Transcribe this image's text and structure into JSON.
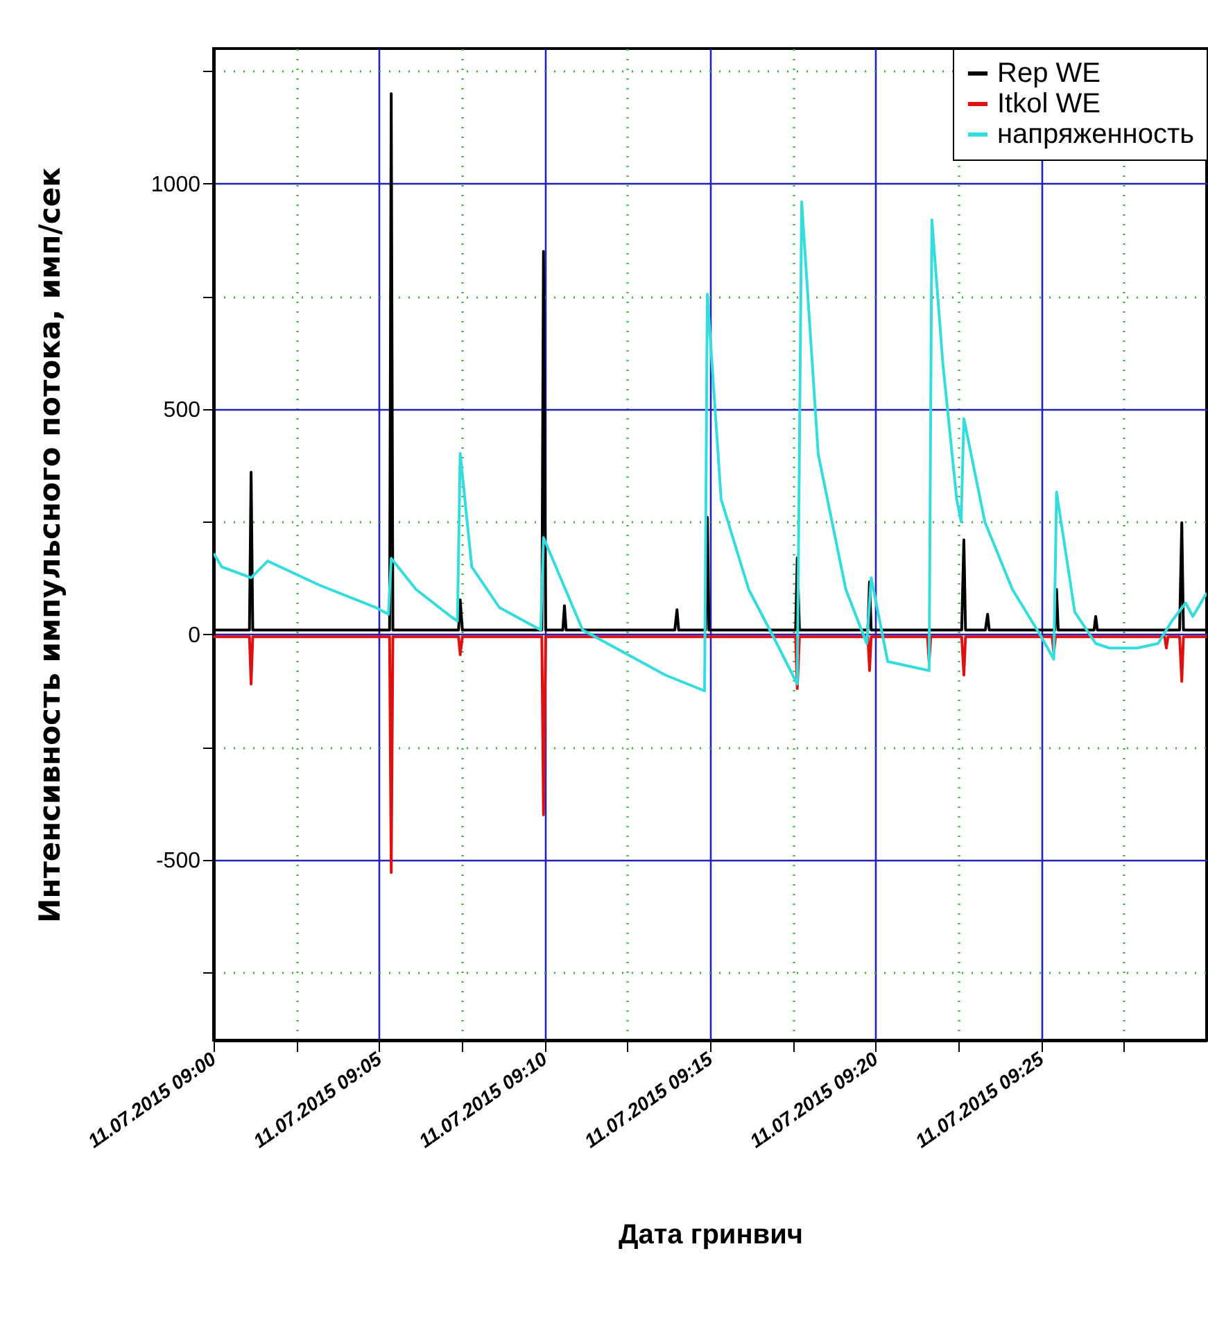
{
  "chart_data": {
    "type": "line",
    "xlabel": "Дата гринвич",
    "ylabel": "Интенсивность  импульсного потока, имп/сек",
    "xlim": [
      "2015-07-11T09:00",
      "2015-07-11T09:30"
    ],
    "xticks": [
      {
        "value": "2015-07-11T09:00",
        "label": "11.07.2015 09:00"
      },
      {
        "value": "2015-07-11T09:02:30",
        "label": null
      },
      {
        "value": "2015-07-11T09:05",
        "label": "11.07.2015 09:05"
      },
      {
        "value": "2015-07-11T09:07:30",
        "label": null
      },
      {
        "value": "2015-07-11T09:10",
        "label": "11.07.2015 09:10"
      },
      {
        "value": "2015-07-11T09:12:30",
        "label": null
      },
      {
        "value": "2015-07-11T09:15",
        "label": "11.07.2015 09:15"
      },
      {
        "value": "2015-07-11T09:17:30",
        "label": null
      },
      {
        "value": "2015-07-11T09:20",
        "label": "11.07.2015 09:20"
      },
      {
        "value": "2015-07-11T09:22:30",
        "label": null
      },
      {
        "value": "2015-07-11T09:25",
        "label": "11.07.2015 09:25"
      },
      {
        "value": "2015-07-11T09:27:30",
        "label": null
      }
    ],
    "ylim": [
      -900,
      1300
    ],
    "yticks": [
      {
        "value": -750,
        "label": null
      },
      -500,
      {
        "value": -250,
        "label": null
      },
      0,
      {
        "value": 250,
        "label": null
      },
      500,
      {
        "value": 750,
        "label": null
      },
      1000,
      {
        "value": 1250,
        "label": null
      }
    ],
    "grid": true,
    "legend": "top right",
    "series": [
      {
        "name": "Rep WE",
        "color": "#000000",
        "x": [
          "2015-07-11T09:00:00",
          "2015-07-11T09:01:05",
          "2015-07-11T09:01:08",
          "2015-07-11T09:01:11",
          "2015-07-11T09:05:19",
          "2015-07-11T09:05:22",
          "2015-07-11T09:05:25",
          "2015-07-11T09:07:24",
          "2015-07-11T09:07:27",
          "2015-07-11T09:07:31",
          "2015-07-11T09:09:55",
          "2015-07-11T09:09:58",
          "2015-07-11T09:10:02",
          "2015-07-11T09:10:33",
          "2015-07-11T09:10:36",
          "2015-07-11T09:10:39",
          "2015-07-11T09:13:56",
          "2015-07-11T09:14:00",
          "2015-07-11T09:14:03",
          "2015-07-11T09:14:52",
          "2015-07-11T09:14:55",
          "2015-07-11T09:14:58",
          "2015-07-11T09:17:35",
          "2015-07-11T09:17:38",
          "2015-07-11T09:17:42",
          "2015-07-11T09:19:46",
          "2015-07-11T09:19:49",
          "2015-07-11T09:19:52",
          "2015-07-11T09:22:36",
          "2015-07-11T09:22:40",
          "2015-07-11T09:22:43",
          "2015-07-11T09:23:19",
          "2015-07-11T09:23:23",
          "2015-07-11T09:23:26",
          "2015-07-11T09:25:25",
          "2015-07-11T09:25:28",
          "2015-07-11T09:25:31",
          "2015-07-11T09:26:36",
          "2015-07-11T09:26:39",
          "2015-07-11T09:26:42",
          "2015-07-11T09:29:11",
          "2015-07-11T09:29:15",
          "2015-07-11T09:29:18",
          "2015-07-11T09:30:00"
        ],
        "values": [
          10,
          10,
          360,
          10,
          10,
          1200,
          10,
          10,
          77,
          10,
          10,
          850,
          10,
          10,
          64,
          10,
          10,
          55,
          10,
          10,
          260,
          10,
          10,
          170,
          10,
          10,
          117,
          10,
          10,
          210,
          10,
          10,
          45,
          10,
          10,
          100,
          10,
          10,
          40,
          10,
          10,
          248,
          10,
          10
        ]
      },
      {
        "name": "Itkol WE",
        "color": "#dd1111",
        "x": [
          "2015-07-11T09:00:00",
          "2015-07-11T09:01:05",
          "2015-07-11T09:01:08",
          "2015-07-11T09:01:11",
          "2015-07-11T09:05:19",
          "2015-07-11T09:05:22",
          "2015-07-11T09:05:25",
          "2015-07-11T09:07:24",
          "2015-07-11T09:07:27",
          "2015-07-11T09:07:31",
          "2015-07-11T09:09:55",
          "2015-07-11T09:09:58",
          "2015-07-11T09:10:02",
          "2015-07-11T09:17:35",
          "2015-07-11T09:17:38",
          "2015-07-11T09:17:42",
          "2015-07-11T09:19:46",
          "2015-07-11T09:19:49",
          "2015-07-11T09:19:52",
          "2015-07-11T09:21:34",
          "2015-07-11T09:21:37",
          "2015-07-11T09:21:40",
          "2015-07-11T09:22:36",
          "2015-07-11T09:22:40",
          "2015-07-11T09:22:43",
          "2015-07-11T09:25:20",
          "2015-07-11T09:25:23",
          "2015-07-11T09:25:26",
          "2015-07-11T09:28:44",
          "2015-07-11T09:28:47",
          "2015-07-11T09:28:50",
          "2015-07-11T09:29:11",
          "2015-07-11T09:29:15",
          "2015-07-11T09:29:18",
          "2015-07-11T09:30:00"
        ],
        "values": [
          -5,
          -5,
          -110,
          -5,
          -5,
          -528,
          -5,
          -5,
          -45,
          -5,
          -5,
          -400,
          -5,
          -5,
          -120,
          -5,
          -5,
          -80,
          -5,
          -5,
          -60,
          -5,
          -5,
          -90,
          -5,
          -5,
          -40,
          -5,
          -5,
          -30,
          -5,
          -5,
          -104,
          -5,
          -5
        ]
      },
      {
        "name": "напряженность",
        "color": "#33dddd",
        "x": [
          "2015-07-11T09:00:00",
          "2015-07-11T09:00:15",
          "2015-07-11T09:01:08",
          "2015-07-11T09:01:38",
          "2015-07-11T09:03:11",
          "2015-07-11T09:04:52",
          "2015-07-11T09:05:17",
          "2015-07-11T09:05:22",
          "2015-07-11T09:06:07",
          "2015-07-11T09:07:10",
          "2015-07-11T09:07:22",
          "2015-07-11T09:07:27",
          "2015-07-11T09:07:48",
          "2015-07-11T09:08:38",
          "2015-07-11T09:09:53",
          "2015-07-11T09:09:58",
          "2015-07-11T09:11:09",
          "2015-07-11T09:12:24",
          "2015-07-11T09:13:39",
          "2015-07-11T09:14:50",
          "2015-07-11T09:14:55",
          "2015-07-11T09:15:20",
          "2015-07-11T09:16:10",
          "2015-07-11T09:17:01",
          "2015-07-11T09:17:38",
          "2015-07-11T09:17:46",
          "2015-07-11T09:18:16",
          "2015-07-11T09:19:06",
          "2015-07-11T09:19:44",
          "2015-07-11T09:19:52",
          "2015-07-11T09:20:22",
          "2015-07-11T09:21:37",
          "2015-07-11T09:21:42",
          "2015-07-11T09:22:02",
          "2015-07-11T09:22:27",
          "2015-07-11T09:22:35",
          "2015-07-11T09:22:40",
          "2015-07-11T09:23:18",
          "2015-07-11T09:24:08",
          "2015-07-11T09:24:58",
          "2015-07-11T09:25:23",
          "2015-07-11T09:25:28",
          "2015-07-11T09:26:01",
          "2015-07-11T09:26:39",
          "2015-07-11T09:27:04",
          "2015-07-11T09:27:54",
          "2015-07-11T09:28:32",
          "2015-07-11T09:28:57",
          "2015-07-11T09:29:22",
          "2015-07-11T09:29:35",
          "2015-07-11T09:30:00"
        ],
        "values": [
          180,
          150,
          126,
          163,
          110,
          61,
          45,
          169,
          100,
          40,
          30,
          402,
          150,
          60,
          10,
          215,
          10,
          -40,
          -90,
          -125,
          755,
          300,
          100,
          -20,
          -110,
          960,
          400,
          100,
          -20,
          126,
          -60,
          -80,
          920,
          600,
          300,
          250,
          479,
          250,
          100,
          0,
          -55,
          316,
          50,
          -20,
          -30,
          -30,
          -20,
          30,
          70,
          40,
          92
        ]
      }
    ]
  }
}
